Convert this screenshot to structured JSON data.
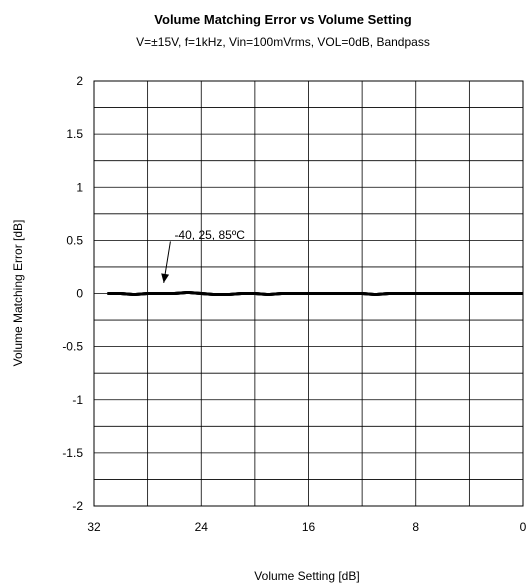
{
  "chart_data": {
    "type": "line",
    "title": "Volume Matching Error vs Volume Setting",
    "subtitle": "V=±15V, f=1kHz, Vin=100mVrms, VOL=0dB, Bandpass",
    "xlabel": "Volume Setting [dB]",
    "ylabel": "Volume Matching Error [dB]",
    "xlim": [
      32,
      0
    ],
    "x_reversed": true,
    "ylim": [
      -2,
      2
    ],
    "x_ticks": [
      "32",
      "24",
      "16",
      "8",
      "0"
    ],
    "y_ticks": [
      "2",
      "1.5",
      "1",
      "0.5",
      "0",
      "-0.5",
      "-1",
      "-1.5",
      "-2"
    ],
    "grid": true,
    "annotation": "-40, 25, 85ºC",
    "series": [
      {
        "name": "-40",
        "color": "#000000",
        "x": [
          31,
          30,
          29,
          28,
          27,
          26,
          25,
          24,
          23,
          22,
          21,
          20,
          19,
          18,
          17,
          16,
          15,
          14,
          13,
          12,
          11,
          10,
          9,
          8,
          7,
          6,
          5,
          4,
          3,
          2,
          1,
          0
        ],
        "y": [
          0,
          0,
          -0.01,
          0,
          0,
          0,
          0.01,
          0,
          -0.01,
          -0.01,
          0,
          0,
          -0.01,
          0,
          0,
          0,
          0,
          0,
          0,
          0,
          -0.01,
          0,
          0,
          0,
          0,
          0,
          0,
          0,
          0,
          0,
          0,
          0
        ]
      },
      {
        "name": "25",
        "color": "#000000",
        "x": [
          31,
          30,
          29,
          28,
          27,
          26,
          25,
          24,
          23,
          22,
          21,
          20,
          19,
          18,
          17,
          16,
          15,
          14,
          13,
          12,
          11,
          10,
          9,
          8,
          7,
          6,
          5,
          4,
          3,
          2,
          1,
          0
        ],
        "y": [
          0,
          0,
          -0.01,
          0,
          0,
          0,
          0.01,
          0,
          -0.01,
          -0.01,
          0,
          0,
          -0.01,
          0,
          0,
          0,
          0,
          0,
          0,
          0,
          -0.01,
          0,
          0,
          0,
          0,
          0,
          0,
          0,
          0,
          0,
          0,
          0
        ]
      },
      {
        "name": "85ºC",
        "color": "#000000",
        "x": [
          31,
          30,
          29,
          28,
          27,
          26,
          25,
          24,
          23,
          22,
          21,
          20,
          19,
          18,
          17,
          16,
          15,
          14,
          13,
          12,
          11,
          10,
          9,
          8,
          7,
          6,
          5,
          4,
          3,
          2,
          1,
          0
        ],
        "y": [
          0,
          0,
          -0.01,
          0,
          0,
          0,
          0.01,
          0,
          -0.01,
          -0.01,
          0,
          0,
          -0.01,
          0,
          0,
          0,
          0,
          0,
          0,
          0,
          -0.01,
          0,
          0,
          0,
          0,
          0,
          0,
          0,
          0,
          0,
          0,
          0
        ]
      }
    ]
  }
}
